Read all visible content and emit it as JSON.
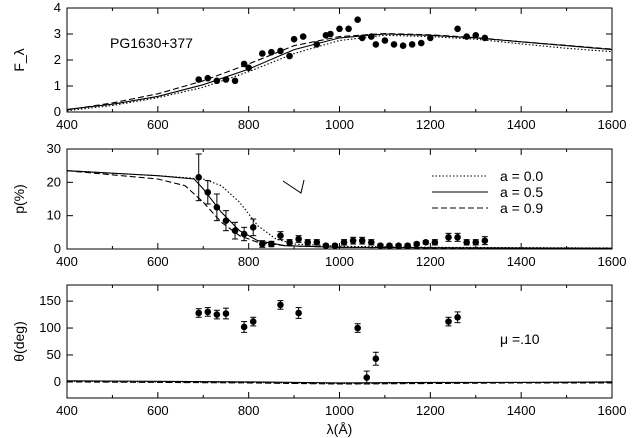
{
  "chart_data": [
    {
      "type": "scatter",
      "title": "",
      "xlabel": "",
      "ylabel": "F_λ",
      "xlim": [
        400,
        1600
      ],
      "ylim": [
        0,
        4
      ],
      "xticks": [
        400,
        600,
        800,
        1000,
        1200,
        1400,
        1600
      ],
      "yticks": [
        0,
        1,
        2,
        3,
        4
      ],
      "annotations": [
        {
          "text": "PG1630+377"
        }
      ],
      "points": [
        [
          690,
          1.25
        ],
        [
          710,
          1.3
        ],
        [
          730,
          1.2
        ],
        [
          750,
          1.25
        ],
        [
          770,
          1.2
        ],
        [
          790,
          1.85
        ],
        [
          800,
          1.7
        ],
        [
          830,
          2.25
        ],
        [
          850,
          2.3
        ],
        [
          870,
          2.35
        ],
        [
          890,
          2.15
        ],
        [
          900,
          2.8
        ],
        [
          920,
          2.9
        ],
        [
          950,
          2.6
        ],
        [
          970,
          2.95
        ],
        [
          980,
          3.0
        ],
        [
          1000,
          3.2
        ],
        [
          1020,
          3.2
        ],
        [
          1040,
          3.55
        ],
        [
          1050,
          2.85
        ],
        [
          1070,
          2.9
        ],
        [
          1080,
          2.6
        ],
        [
          1100,
          2.75
        ],
        [
          1120,
          2.6
        ],
        [
          1140,
          2.55
        ],
        [
          1160,
          2.6
        ],
        [
          1180,
          2.65
        ],
        [
          1200,
          2.85
        ],
        [
          1260,
          3.2
        ],
        [
          1280,
          2.9
        ],
        [
          1300,
          2.95
        ],
        [
          1320,
          2.85
        ]
      ],
      "series": [
        {
          "style": "solid",
          "points": [
            [
              400,
              0.1
            ],
            [
              500,
              0.3
            ],
            [
              600,
              0.6
            ],
            [
              700,
              1.05
            ],
            [
              800,
              1.65
            ],
            [
              900,
              2.4
            ],
            [
              1000,
              2.85
            ],
            [
              1100,
              3.0
            ],
            [
              1200,
              2.95
            ],
            [
              1300,
              2.85
            ],
            [
              1400,
              2.7
            ],
            [
              1500,
              2.55
            ],
            [
              1600,
              2.4
            ]
          ]
        },
        {
          "style": "dotted",
          "points": [
            [
              400,
              0.05
            ],
            [
              500,
              0.25
            ],
            [
              600,
              0.55
            ],
            [
              700,
              0.95
            ],
            [
              800,
              1.55
            ],
            [
              900,
              2.25
            ],
            [
              1000,
              2.75
            ],
            [
              1100,
              2.95
            ],
            [
              1200,
              2.9
            ],
            [
              1300,
              2.8
            ],
            [
              1400,
              2.62
            ],
            [
              1500,
              2.45
            ],
            [
              1600,
              2.32
            ]
          ]
        },
        {
          "style": "dashed",
          "points": [
            [
              400,
              0.08
            ],
            [
              500,
              0.35
            ],
            [
              600,
              0.7
            ],
            [
              700,
              1.2
            ],
            [
              800,
              1.85
            ],
            [
              900,
              2.55
            ],
            [
              1000,
              2.9
            ],
            [
              1100,
              3.02
            ],
            [
              1200,
              2.97
            ],
            [
              1300,
              2.86
            ],
            [
              1400,
              2.7
            ],
            [
              1500,
              2.56
            ],
            [
              1600,
              2.42
            ]
          ]
        }
      ]
    },
    {
      "type": "scatter",
      "title": "",
      "xlabel": "",
      "ylabel": "p(%)",
      "xlim": [
        400,
        1600
      ],
      "ylim": [
        0,
        30
      ],
      "xticks": [
        400,
        600,
        800,
        1000,
        1200,
        1400,
        1600
      ],
      "yticks": [
        0,
        10,
        20,
        30
      ],
      "legend": {
        "position": "top-right",
        "entries": [
          {
            "label": "a = 0.0",
            "style": "dotted"
          },
          {
            "label": "a = 0.5",
            "style": "solid"
          },
          {
            "label": "a = 0.9",
            "style": "dashed"
          }
        ]
      },
      "points": [
        [
          690,
          21.5,
          7
        ],
        [
          710,
          17,
          3.5
        ],
        [
          730,
          12.5,
          4
        ],
        [
          750,
          8.5,
          3
        ],
        [
          770,
          5.5,
          2.5
        ],
        [
          790,
          4.5,
          2
        ],
        [
          810,
          6.5,
          2.5
        ],
        [
          830,
          1.5,
          1
        ],
        [
          850,
          1.5,
          0.8
        ],
        [
          870,
          4,
          1.2
        ],
        [
          890,
          2,
          0.8
        ],
        [
          910,
          3,
          1
        ],
        [
          930,
          2,
          0.8
        ],
        [
          950,
          2,
          0.8
        ],
        [
          970,
          1,
          0.5
        ],
        [
          990,
          1,
          0.5
        ],
        [
          1010,
          2,
          0.8
        ],
        [
          1030,
          2.5,
          1
        ],
        [
          1050,
          2.5,
          1
        ],
        [
          1070,
          2,
          0.8
        ],
        [
          1090,
          1,
          0.5
        ],
        [
          1110,
          1,
          0.5
        ],
        [
          1130,
          1,
          0.5
        ],
        [
          1150,
          1,
          0.5
        ],
        [
          1170,
          1.5,
          0.5
        ],
        [
          1190,
          2,
          0.5
        ],
        [
          1210,
          2,
          0.8
        ],
        [
          1240,
          3.5,
          1.2
        ],
        [
          1260,
          3.5,
          1.2
        ],
        [
          1280,
          2,
          0.8
        ],
        [
          1300,
          2,
          0.8
        ],
        [
          1320,
          2.5,
          1.2
        ]
      ],
      "series": [
        {
          "style": "dotted",
          "points": [
            [
              400,
              23.5
            ],
            [
              600,
              22
            ],
            [
              700,
              21
            ],
            [
              740,
              19
            ],
            [
              780,
              14
            ],
            [
              820,
              7
            ],
            [
              860,
              3
            ],
            [
              900,
              1.5
            ],
            [
              1000,
              0.8
            ],
            [
              1200,
              0.5
            ],
            [
              1600,
              0.3
            ]
          ]
        },
        {
          "style": "solid",
          "points": [
            [
              400,
              23.5
            ],
            [
              600,
              22
            ],
            [
              680,
              21
            ],
            [
              700,
              18
            ],
            [
              740,
              11
            ],
            [
              780,
              5.5
            ],
            [
              820,
              2.5
            ],
            [
              880,
              1
            ],
            [
              1000,
              0.5
            ],
            [
              1200,
              0.4
            ],
            [
              1600,
              0.2
            ]
          ]
        },
        {
          "style": "dashed",
          "points": [
            [
              400,
              23.5
            ],
            [
              600,
              21
            ],
            [
              660,
              19
            ],
            [
              700,
              14
            ],
            [
              740,
              8
            ],
            [
              780,
              4
            ],
            [
              820,
              2
            ],
            [
              880,
              1
            ],
            [
              1000,
              0.5
            ],
            [
              1200,
              0.3
            ],
            [
              1600,
              0.2
            ]
          ]
        }
      ]
    },
    {
      "type": "scatter",
      "title": "",
      "xlabel": "λ(Å)",
      "ylabel": "θ(deg)",
      "xlim": [
        400,
        1600
      ],
      "ylim": [
        -30,
        180
      ],
      "xticks": [
        400,
        600,
        800,
        1000,
        1200,
        1400,
        1600
      ],
      "yticks": [
        0,
        50,
        100,
        150
      ],
      "annotations": [
        {
          "text": "μ =.10"
        }
      ],
      "points": [
        [
          690,
          128,
          8
        ],
        [
          710,
          130,
          8
        ],
        [
          730,
          125,
          8
        ],
        [
          750,
          127,
          10
        ],
        [
          790,
          102,
          10
        ],
        [
          810,
          112,
          8
        ],
        [
          870,
          143,
          8
        ],
        [
          910,
          128,
          10
        ],
        [
          1040,
          100,
          8
        ],
        [
          1060,
          8,
          12
        ],
        [
          1080,
          43,
          12
        ],
        [
          1240,
          112,
          8
        ],
        [
          1260,
          120,
          10
        ]
      ],
      "series": [
        {
          "style": "solid",
          "points": [
            [
              400,
              2
            ],
            [
              600,
              1
            ],
            [
              800,
              0
            ],
            [
              1000,
              -2
            ],
            [
              1200,
              -1
            ],
            [
              1400,
              -1
            ],
            [
              1600,
              0
            ]
          ]
        },
        {
          "style": "dotted",
          "points": [
            [
              400,
              1
            ],
            [
              600,
              0
            ],
            [
              800,
              -1
            ],
            [
              1000,
              -3
            ],
            [
              1200,
              -2
            ],
            [
              1400,
              -1
            ],
            [
              1600,
              -1
            ]
          ]
        },
        {
          "style": "dashed",
          "points": [
            [
              400,
              0
            ],
            [
              600,
              -1
            ],
            [
              800,
              -2
            ],
            [
              1000,
              -4
            ],
            [
              1200,
              -3
            ],
            [
              1400,
              -2
            ],
            [
              1600,
              -2
            ]
          ]
        }
      ]
    }
  ]
}
